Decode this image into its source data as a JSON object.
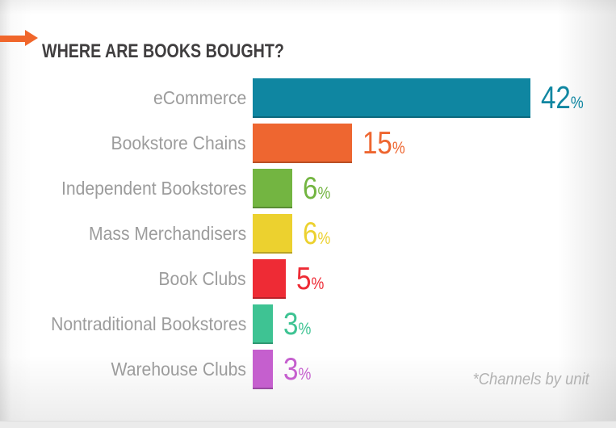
{
  "header": {
    "title": "WHERE ARE BOOKS BOUGHT?",
    "title_color": "#403e3f",
    "arrow_color": "#f0662b",
    "arrow_icon": "right-arrow-icon"
  },
  "chart_data": {
    "type": "bar",
    "orientation": "horizontal",
    "title": "WHERE ARE BOOKS BOUGHT?",
    "categories": [
      "eCommerce",
      "Bookstore Chains",
      "Independent Bookstores",
      "Mass Merchandisers",
      "Book Clubs",
      "Nontraditional Bookstores",
      "Warehouse Clubs"
    ],
    "values": [
      42,
      15,
      6,
      6,
      5,
      3,
      3
    ],
    "unit": "%",
    "colors": [
      "#0f86a1",
      "#ee6630",
      "#73b541",
      "#ecd12f",
      "#ee2b35",
      "#3ec393",
      "#c55fce"
    ],
    "label_color": "#9c9c9c",
    "xlim": [
      0,
      45
    ],
    "grid": false,
    "legend": "none",
    "value_labels": "end-of-bar",
    "footnote": "*Channels by unit"
  },
  "footnote": {
    "text": "*Channels by unit",
    "color": "#b2b2b2"
  }
}
